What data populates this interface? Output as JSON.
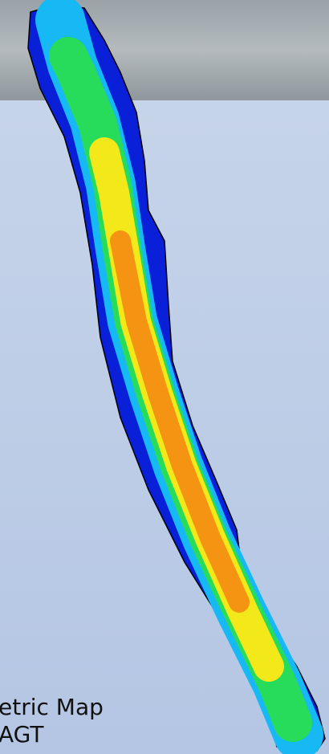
{
  "caption": {
    "line1": "etric Map",
    "line2": "AGT"
  }
}
